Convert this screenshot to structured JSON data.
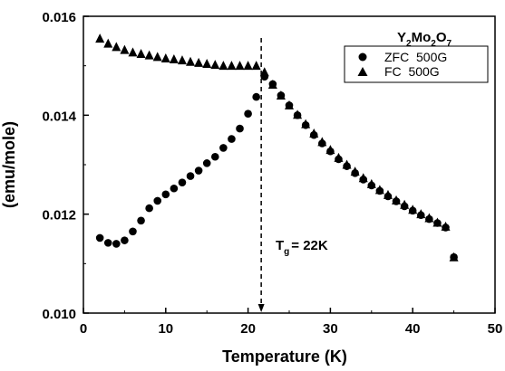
{
  "chart_data": {
    "type": "scatter",
    "title": "",
    "xlabel": "Temperature (K)",
    "ylabel": "(emu/mole)",
    "xlim": [
      0,
      50
    ],
    "ylim": [
      0.01,
      0.016
    ],
    "xticks": [
      0,
      10,
      20,
      30,
      40,
      50
    ],
    "xtick_labels": [
      "0",
      "10",
      "20",
      "30",
      "40",
      "50"
    ],
    "yticks": [
      0.01,
      0.012,
      0.014,
      0.016
    ],
    "ytick_labels": [
      "0.010",
      "0.012",
      "0.014",
      "0.016"
    ],
    "grid": false,
    "legend_position": "top-right",
    "compound": {
      "base": "Y",
      "parts": [
        {
          "el": "Y",
          "sub": "2"
        },
        {
          "el": "Mo",
          "sub": "2"
        },
        {
          "el": "O",
          "sub": "7"
        }
      ]
    },
    "annotation": {
      "main": "T",
      "sub": "g",
      "rest": "= 22K"
    },
    "vline_x": 21.6,
    "series": [
      {
        "name": "ZFC  500G",
        "marker": "circle",
        "color": "#000000",
        "x": [
          2,
          3,
          4,
          5,
          6,
          7,
          8,
          9,
          10,
          11,
          12,
          13,
          14,
          15,
          16,
          17,
          18,
          19,
          20,
          21,
          22,
          23,
          24,
          25,
          26,
          27,
          28,
          29,
          30,
          31,
          32,
          33,
          34,
          35,
          36,
          37,
          38,
          39,
          40,
          41,
          42,
          43,
          44,
          45
        ],
        "y": [
          0.01152,
          0.01142,
          0.0114,
          0.01147,
          0.01165,
          0.01187,
          0.01212,
          0.01227,
          0.0124,
          0.01252,
          0.01264,
          0.01277,
          0.01288,
          0.01303,
          0.01316,
          0.01334,
          0.01352,
          0.01373,
          0.01403,
          0.01437,
          0.01478,
          0.01463,
          0.0144,
          0.0142,
          0.014,
          0.0138,
          0.0136,
          0.01343,
          0.01327,
          0.01311,
          0.01297,
          0.01283,
          0.0127,
          0.01258,
          0.01247,
          0.01236,
          0.01226,
          0.01216,
          0.01207,
          0.01198,
          0.0119,
          0.01182,
          0.01173,
          0.01113
        ]
      },
      {
        "name": "FC  500G",
        "marker": "triangle",
        "color": "#000000",
        "x": [
          2,
          3,
          4,
          5,
          6,
          7,
          8,
          9,
          10,
          11,
          12,
          13,
          14,
          15,
          16,
          17,
          18,
          19,
          20,
          21,
          22,
          23,
          24,
          25,
          26,
          27,
          28,
          29,
          30,
          31,
          32,
          33,
          34,
          35,
          36,
          37,
          38,
          39,
          40,
          41,
          42,
          43,
          44,
          45
        ],
        "y": [
          0.01555,
          0.01545,
          0.01538,
          0.01532,
          0.01527,
          0.01524,
          0.01521,
          0.01518,
          0.01515,
          0.01513,
          0.01511,
          0.01508,
          0.01506,
          0.01504,
          0.01502,
          0.015,
          0.015,
          0.015,
          0.015,
          0.015,
          0.01487,
          0.01462,
          0.0144,
          0.0142,
          0.01401,
          0.01382,
          0.01363,
          0.01346,
          0.0133,
          0.01314,
          0.013,
          0.01286,
          0.01273,
          0.01261,
          0.01249,
          0.01239,
          0.01228,
          0.01219,
          0.01209,
          0.012,
          0.01192,
          0.01183,
          0.01175,
          0.01113
        ]
      }
    ]
  }
}
